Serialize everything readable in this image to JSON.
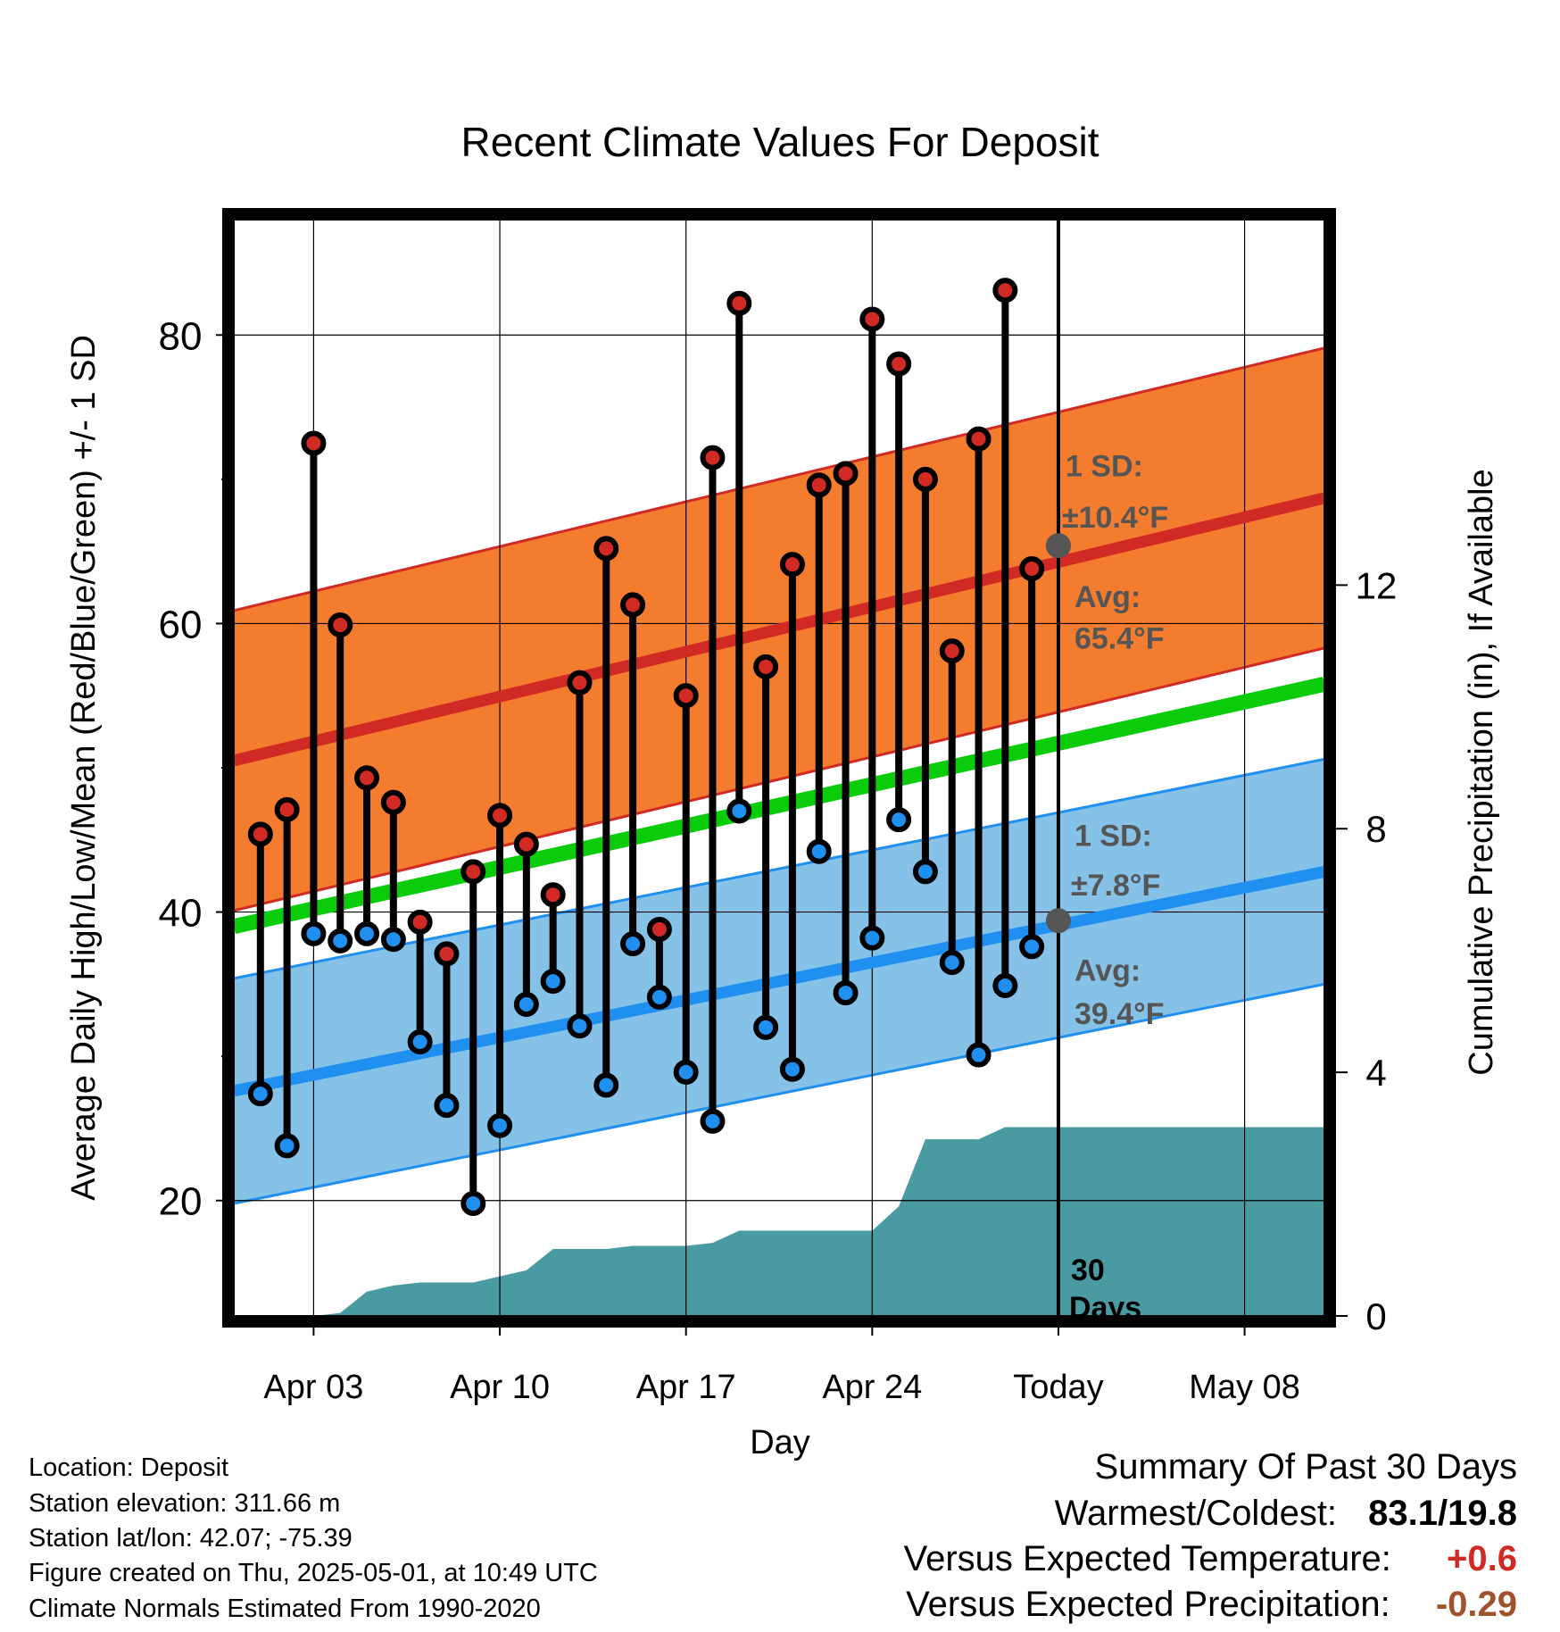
{
  "chart_data": {
    "type": "line",
    "title": "Recent Climate Values For Deposit",
    "xlabel": "Day",
    "ylabel": "Average Daily High/Low/Mean (Red/Blue/Green) +/- 1 SD",
    "y2label": "Cumulative Precipitation (in), If Available",
    "ylim": [
      12,
      88
    ],
    "y2lim": [
      0,
      18
    ],
    "yticks": [
      20,
      40,
      60,
      80
    ],
    "y2ticks": [
      0,
      4,
      8,
      12
    ],
    "xlim": [
      "Mar 31",
      "May 11"
    ],
    "xticks": [
      {
        "date": "Apr 03",
        "label": "Apr 03"
      },
      {
        "date": "Apr 10",
        "label": "Apr 10"
      },
      {
        "date": "Apr 17",
        "label": "Apr 17"
      },
      {
        "date": "Apr 24",
        "label": "Apr 24"
      },
      {
        "date": "May 01",
        "label": "Today"
      },
      {
        "date": "May 08",
        "label": "May 08"
      }
    ],
    "today": "May 01",
    "grid": true,
    "colors": {
      "high_band": "#f47c2e",
      "high_line": "#d12a25",
      "low_band": "#86c2e8",
      "low_line": "#1f8ff0",
      "mean_line": "#0acc0a",
      "precip": "#4a9aa2",
      "high_dot": "#d12a25",
      "low_dot": "#1f8ff0",
      "annotation": "#555555"
    },
    "normals": {
      "high_mean": {
        "start": 50.5,
        "end": 68.7
      },
      "high_sd": 10.4,
      "low_mean": {
        "start": 27.6,
        "end": 42.8
      },
      "low_sd": 7.8,
      "mean": {
        "start": 39.0,
        "end": 55.8
      }
    },
    "series": [
      {
        "name": "High",
        "x": [
          "Apr 01",
          "Apr 02",
          "Apr 03",
          "Apr 04",
          "Apr 05",
          "Apr 06",
          "Apr 07",
          "Apr 08",
          "Apr 09",
          "Apr 10",
          "Apr 11",
          "Apr 12",
          "Apr 13",
          "Apr 14",
          "Apr 15",
          "Apr 16",
          "Apr 17",
          "Apr 18",
          "Apr 19",
          "Apr 20",
          "Apr 21",
          "Apr 22",
          "Apr 23",
          "Apr 24",
          "Apr 25",
          "Apr 26",
          "Apr 27",
          "Apr 28",
          "Apr 29",
          "Apr 30"
        ],
        "values": [
          45.4,
          47.1,
          72.5,
          59.9,
          49.3,
          47.6,
          39.3,
          37.1,
          42.8,
          46.7,
          44.7,
          41.2,
          55.9,
          65.2,
          61.3,
          38.8,
          55.0,
          71.5,
          82.2,
          57.0,
          64.1,
          69.6,
          70.4,
          81.1,
          78.0,
          70.0,
          58.1,
          72.8,
          83.1,
          63.8
        ]
      },
      {
        "name": "Low",
        "x": [
          "Apr 01",
          "Apr 02",
          "Apr 03",
          "Apr 04",
          "Apr 05",
          "Apr 06",
          "Apr 07",
          "Apr 08",
          "Apr 09",
          "Apr 10",
          "Apr 11",
          "Apr 12",
          "Apr 13",
          "Apr 14",
          "Apr 15",
          "Apr 16",
          "Apr 17",
          "Apr 18",
          "Apr 19",
          "Apr 20",
          "Apr 21",
          "Apr 22",
          "Apr 23",
          "Apr 24",
          "Apr 25",
          "Apr 26",
          "Apr 27",
          "Apr 28",
          "Apr 29",
          "Apr 30"
        ],
        "values": [
          27.4,
          23.8,
          38.5,
          38.0,
          38.5,
          38.1,
          31.0,
          26.6,
          19.8,
          25.2,
          33.6,
          35.2,
          32.1,
          28.0,
          37.8,
          34.1,
          28.9,
          25.5,
          47.0,
          32.0,
          29.1,
          44.2,
          34.4,
          38.2,
          46.4,
          42.8,
          36.5,
          30.1,
          34.9,
          37.6
        ]
      },
      {
        "name": "Cumulative Precipitation",
        "x": [
          "Mar 31",
          "Apr 01",
          "Apr 02",
          "Apr 03",
          "Apr 04",
          "Apr 05",
          "Apr 06",
          "Apr 07",
          "Apr 08",
          "Apr 09",
          "Apr 10",
          "Apr 11",
          "Apr 12",
          "Apr 13",
          "Apr 14",
          "Apr 15",
          "Apr 16",
          "Apr 17",
          "Apr 18",
          "Apr 19",
          "Apr 20",
          "Apr 21",
          "Apr 22",
          "Apr 23",
          "Apr 24",
          "Apr 25",
          "Apr 26",
          "Apr 27",
          "Apr 28",
          "Apr 29",
          "Apr 30",
          "May 11"
        ],
        "values": [
          0,
          0,
          0,
          0,
          0.05,
          0.4,
          0.5,
          0.55,
          0.55,
          0.55,
          0.65,
          0.75,
          1.1,
          1.1,
          1.1,
          1.15,
          1.15,
          1.15,
          1.2,
          1.4,
          1.4,
          1.4,
          1.4,
          1.4,
          1.4,
          1.8,
          2.9,
          2.9,
          2.9,
          3.1,
          3.1,
          3.1
        ]
      }
    ],
    "annotations": {
      "high_sd_label": "1 SD:",
      "high_sd_value": "±10.4°F",
      "high_avg_label": "Avg:",
      "high_avg_value": "65.4°F",
      "low_sd_label": "1 SD:",
      "low_sd_value": "±7.8°F",
      "low_avg_label": "Avg:",
      "low_avg_value": "39.4°F",
      "today_count": "30",
      "today_days": "Days"
    }
  },
  "info": {
    "location": "Location: Deposit",
    "elevation": "Station elevation: 311.66 m",
    "latlon": "Station lat/lon: 42.07; -75.39",
    "created": "Figure created on Thu, 2025-05-01, at 10:49 UTC",
    "normals": "Climate Normals Estimated From 1990-2020"
  },
  "summary": {
    "title": "Summary Of Past 30 Days",
    "warm_cold_label": "Warmest/Coldest:",
    "warm_cold_value": "83.1/19.8",
    "temp_label": "Versus Expected Temperature:",
    "temp_value": "+0.6",
    "temp_color": "#d12a25",
    "precip_label": "Versus Expected Precipitation:",
    "precip_value": "-0.29",
    "precip_color": "#a0522d"
  }
}
